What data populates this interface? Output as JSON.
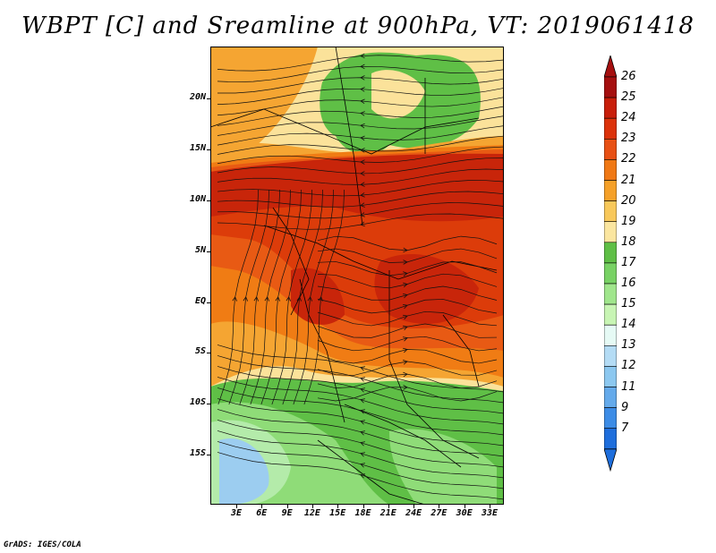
{
  "title": "WBPT [C] and Sreamline at 900hPa, VT: 2019061418",
  "credit": "GrADS: IGES/COLA",
  "lat_labels": [
    "20N",
    "15N",
    "10N",
    "5N",
    "EQ",
    "5S",
    "10S",
    "15S"
  ],
  "lon_labels": [
    "3E",
    "6E",
    "9E",
    "12E",
    "15E",
    "18E",
    "21E",
    "24E",
    "27E",
    "30E",
    "33E"
  ],
  "colorbar": {
    "labels": [
      "26",
      "25",
      "24",
      "23",
      "22",
      "21",
      "20",
      "19",
      "18",
      "17",
      "16",
      "15",
      "14",
      "13",
      "12",
      "11",
      "9",
      "7"
    ],
    "colors": [
      "#a50f0f",
      "#c81e0a",
      "#dc320a",
      "#e85014",
      "#f07814",
      "#f5a028",
      "#f8c85a",
      "#fbe6a0",
      "#5fbf46",
      "#78d264",
      "#a0e68c",
      "#c8f5b4",
      "#e6faf5",
      "#b4dcf5",
      "#8cc8f0",
      "#64aaeb",
      "#3c8ce6",
      "#1e6edc"
    ]
  },
  "map_colors": {
    "dark_red": "#c8250a",
    "red": "#dc3c0a",
    "orange_red": "#e85a14",
    "orange": "#f07c14",
    "light_orange": "#f5a532",
    "pale": "#fbe29a",
    "green": "#5fbf46",
    "light_green": "#8fdc78",
    "pale_green": "#b4ebaa",
    "blue": "#9ccdf0"
  }
}
